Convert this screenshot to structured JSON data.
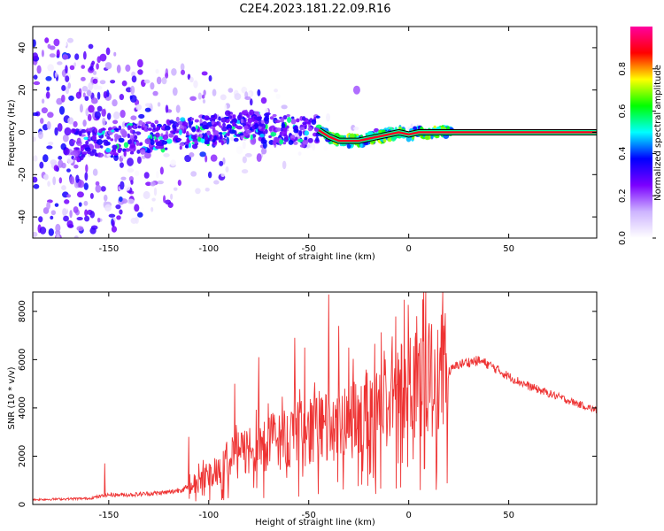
{
  "title": "C2E4.2023.181.22.09.R16",
  "chart_data": [
    {
      "type": "heatmap",
      "xlabel": "Height of straight line (km)",
      "ylabel": "Frequency (Hz)",
      "xlim": [
        -188,
        94
      ],
      "ylim": [
        -50,
        50
      ],
      "xticks": [
        -150,
        -100,
        -50,
        0,
        50
      ],
      "yticks": [
        -40,
        -20,
        0,
        20,
        40
      ],
      "colorbar": {
        "label": "Normalized spectral amplitude",
        "ticks": [
          "0.0",
          "0.2",
          "0.4",
          "0.6",
          "0.8"
        ],
        "tick_values": [
          0.0,
          0.2,
          0.4,
          0.6,
          0.8
        ],
        "range": [
          0,
          1
        ],
        "colors": [
          "#ffffff",
          "#cdb4ff",
          "#7b00ff",
          "#0000ff",
          "#00ffff",
          "#00ff00",
          "#ffff00",
          "#ff0000",
          "#ff00a0"
        ]
      },
      "ridge": {
        "x": [
          -165,
          -150,
          -140,
          -120,
          -100,
          -85,
          -70,
          -60,
          -50,
          -45,
          -40,
          -35,
          -30,
          -25,
          -20,
          -15,
          -10,
          -5,
          0,
          5,
          10,
          20,
          94
        ],
        "y": [
          -6,
          -5,
          -3,
          -1,
          1,
          3,
          2,
          1,
          0,
          1,
          -2,
          -4,
          -4,
          -4,
          -3,
          -2,
          -1,
          0,
          -1,
          0,
          0,
          0,
          0
        ]
      }
    },
    {
      "type": "line",
      "xlabel": "Height of straight line (km)",
      "ylabel": "SNR (10 * v/v)",
      "xlim": [
        -188,
        94
      ],
      "ylim": [
        0,
        8800
      ],
      "xticks": [
        -150,
        -100,
        -50,
        0,
        50
      ],
      "yticks": [
        0,
        2000,
        4000,
        6000,
        8000
      ],
      "color": "#ee3333",
      "envelope": {
        "x": [
          -188,
          -160,
          -150,
          -140,
          -120,
          -110,
          -100,
          -90,
          -80,
          -70,
          -60,
          -50,
          -40,
          -30,
          -20,
          -10,
          -5,
          0,
          5,
          10,
          20,
          25,
          30,
          35,
          40,
          50,
          60,
          70,
          80,
          94
        ],
        "y": [
          200,
          250,
          400,
          400,
          500,
          700,
          1200,
          1800,
          2300,
          2600,
          2800,
          3000,
          3100,
          3300,
          3600,
          4300,
          4600,
          5200,
          5400,
          5000,
          5500,
          5800,
          5900,
          5950,
          5800,
          5300,
          4900,
          4600,
          4300,
          3900
        ]
      },
      "spikes": [
        {
          "x": -152,
          "y": 1700
        },
        {
          "x": -110,
          "y": 2800
        },
        {
          "x": -87,
          "y": 5000
        },
        {
          "x": -75,
          "y": 6100
        },
        {
          "x": -57,
          "y": 6900
        },
        {
          "x": -52,
          "y": 6500
        },
        {
          "x": -40,
          "y": 8700
        },
        {
          "x": -35,
          "y": 7400
        },
        {
          "x": -30,
          "y": 6500
        },
        {
          "x": 4,
          "y": 7800
        },
        {
          "x": 7,
          "y": 8500
        },
        {
          "x": 8,
          "y": 1500
        }
      ]
    }
  ]
}
